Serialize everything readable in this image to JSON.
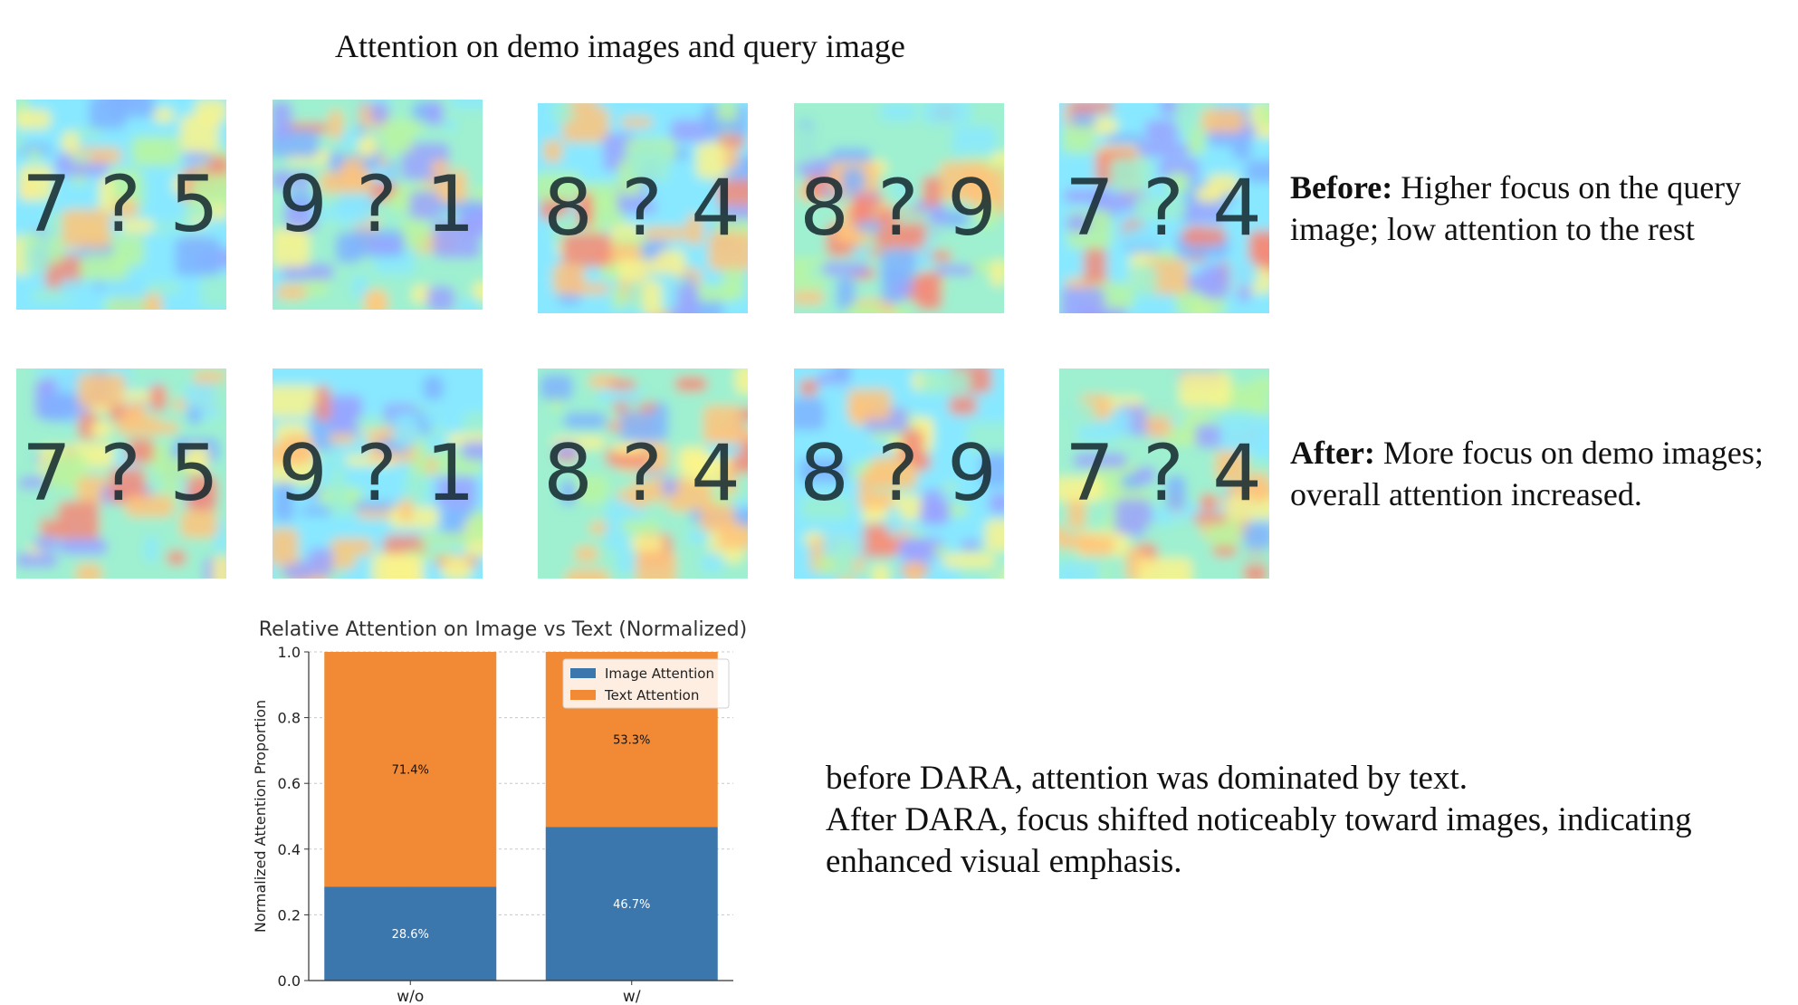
{
  "figure": {
    "title": "Attention on demo images and query image",
    "before_label": "Before:",
    "before_text": "Higher focus on the query image; low attention to the rest",
    "after_label": "After:",
    "after_text": "More focus on demo images; overall attention increased.",
    "summary_line1": "before DARA, attention was dominated by text.",
    "summary_line2": "After DARA, focus shifted noticeably toward images, indicating enhanced visual emphasis."
  },
  "before_row": [
    "7 ? 5",
    "9 ? 1",
    "8 ? 4",
    "8 ? 9",
    "7 ? 4"
  ],
  "after_row": [
    "7 ? 5",
    "9 ? 1",
    "8 ? 4",
    "8 ? 9",
    "7 ? 4"
  ],
  "chart_data": {
    "type": "bar",
    "stacked": true,
    "title": "Relative Attention on Image vs Text (Normalized)",
    "xlabel": "",
    "ylabel": "Normalized Attention Proportion",
    "categories": [
      "w/o",
      "w/"
    ],
    "ylim": [
      0,
      1.0
    ],
    "yticks": [
      "0.0",
      "0.2",
      "0.4",
      "0.6",
      "0.8",
      "1.0"
    ],
    "grid": true,
    "legend": "top-right",
    "series": [
      {
        "name": "Image Attention",
        "values": [
          0.286,
          0.467
        ],
        "labels": [
          "28.6%",
          "46.7%"
        ],
        "color": "#3b76ad"
      },
      {
        "name": "Text Attention",
        "values": [
          0.714,
          0.533
        ],
        "labels": [
          "71.4%",
          "53.3%"
        ],
        "color": "#f28a35"
      }
    ]
  }
}
